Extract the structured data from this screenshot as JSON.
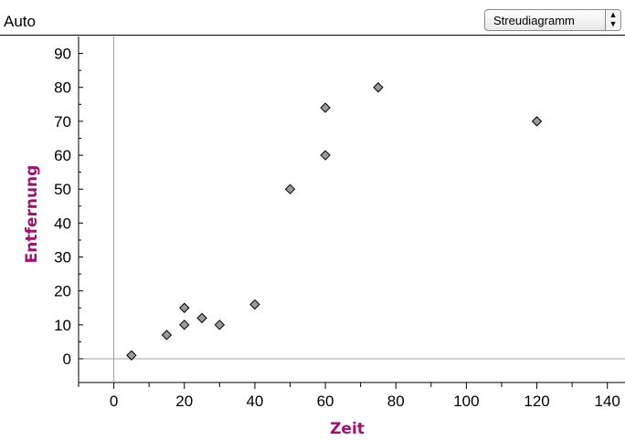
{
  "header": {
    "title": "Auto",
    "chart_type_label": "Streudiagramm"
  },
  "chart_data": {
    "type": "scatter",
    "xlabel": "Zeit",
    "ylabel": "Entfernung",
    "xlim": [
      -10,
      145
    ],
    "ylim": [
      -7,
      95
    ],
    "x_ticks": [
      0,
      20,
      40,
      60,
      80,
      100,
      120,
      140
    ],
    "y_ticks": [
      0,
      10,
      20,
      30,
      40,
      50,
      60,
      70,
      80,
      90
    ],
    "grid": false,
    "series": [
      {
        "points": [
          {
            "x": 5,
            "y": 1
          },
          {
            "x": 15,
            "y": 7
          },
          {
            "x": 20,
            "y": 10
          },
          {
            "x": 20,
            "y": 15
          },
          {
            "x": 25,
            "y": 12
          },
          {
            "x": 30,
            "y": 10
          },
          {
            "x": 40,
            "y": 16
          },
          {
            "x": 50,
            "y": 50
          },
          {
            "x": 60,
            "y": 60
          },
          {
            "x": 60,
            "y": 74
          },
          {
            "x": 75,
            "y": 80
          },
          {
            "x": 120,
            "y": 70
          }
        ]
      }
    ],
    "colors": {
      "point_fill": "#9a9a9a",
      "point_stroke": "#000000",
      "axis_title": "#a0106e",
      "zero_line": "#a0a0a0"
    }
  }
}
